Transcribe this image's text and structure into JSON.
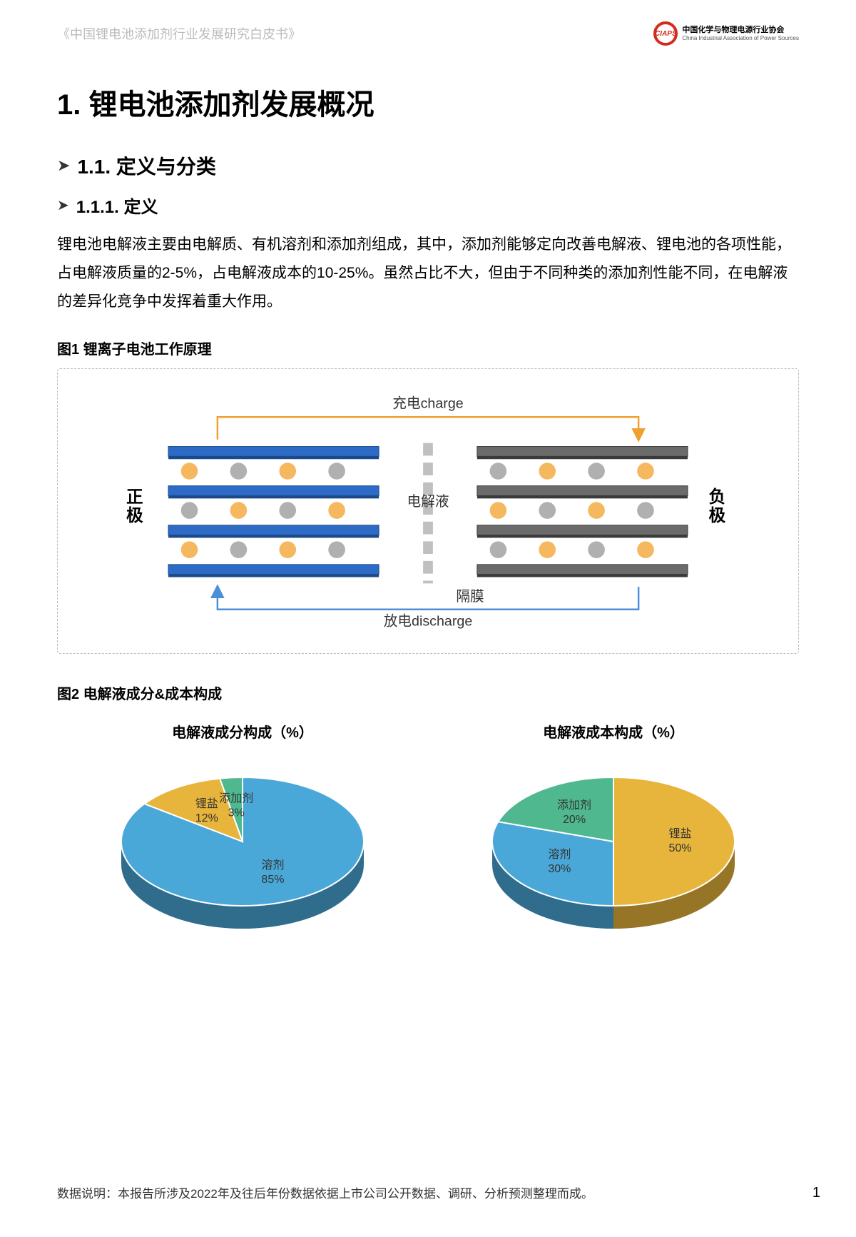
{
  "header": {
    "doc_title": "《中国锂电池添加剂行业发展研究白皮书》",
    "org_cn": "中国化学与物理电源行业协会",
    "org_en": "China Industrial Association of Power Sources",
    "logo_text": "CIAPS"
  },
  "h1": "1. 锂电池添加剂发展概况",
  "section_1_1": "1.1. 定义与分类",
  "section_1_1_1": "1.1.1. 定义",
  "para1": "锂电池电解液主要由电解质、有机溶剂和添加剂组成，其中，添加剂能够定向改善电解液、锂电池的各项性能，占电解液质量的2-5%，占电解液成本的10-25%。虽然占比不大，但由于不同种类的添加剂性能不同，在电解液的差异化竞争中发挥着重大作用。",
  "fig1_title": "图1 锂离子电池工作原理",
  "diagram": {
    "charge_label": "充电charge",
    "discharge_label": "放电discharge",
    "electrolyte_label": "电解液",
    "separator_label": "隔膜",
    "cathode_label": "正极",
    "anode_label": "负极",
    "cathode_color": "#2e6bc7",
    "anode_color": "#6b6b6b",
    "ion_orange": "#f6b85f",
    "ion_gray": "#b0b0b0",
    "arrow_charge": "#f0a030",
    "arrow_discharge": "#4a8fd8"
  },
  "fig2_title": "图2 电解液成分&成本构成",
  "pie1": {
    "title": "电解液成分构成（%）",
    "slices": [
      {
        "label": "溶剂",
        "value": 85,
        "pct": "85%",
        "color": "#4aa8d8"
      },
      {
        "label": "锂盐",
        "value": 12,
        "pct": "12%",
        "color": "#e8b53c"
      },
      {
        "label": "添加剂",
        "value": 3,
        "pct": "3%",
        "color": "#4fb88f"
      }
    ]
  },
  "pie2": {
    "title": "电解液成本构成（%）",
    "slices": [
      {
        "label": "锂盐",
        "value": 50,
        "pct": "50%",
        "color": "#e8b53c"
      },
      {
        "label": "溶剂",
        "value": 30,
        "pct": "30%",
        "color": "#4aa8d8"
      },
      {
        "label": "添加剂",
        "value": 20,
        "pct": "20%",
        "color": "#4fb88f"
      }
    ]
  },
  "footer": "数据说明：本报告所涉及2022年及往后年份数据依据上市公司公开数据、调研、分析预测整理而成。",
  "page_num": "1"
}
